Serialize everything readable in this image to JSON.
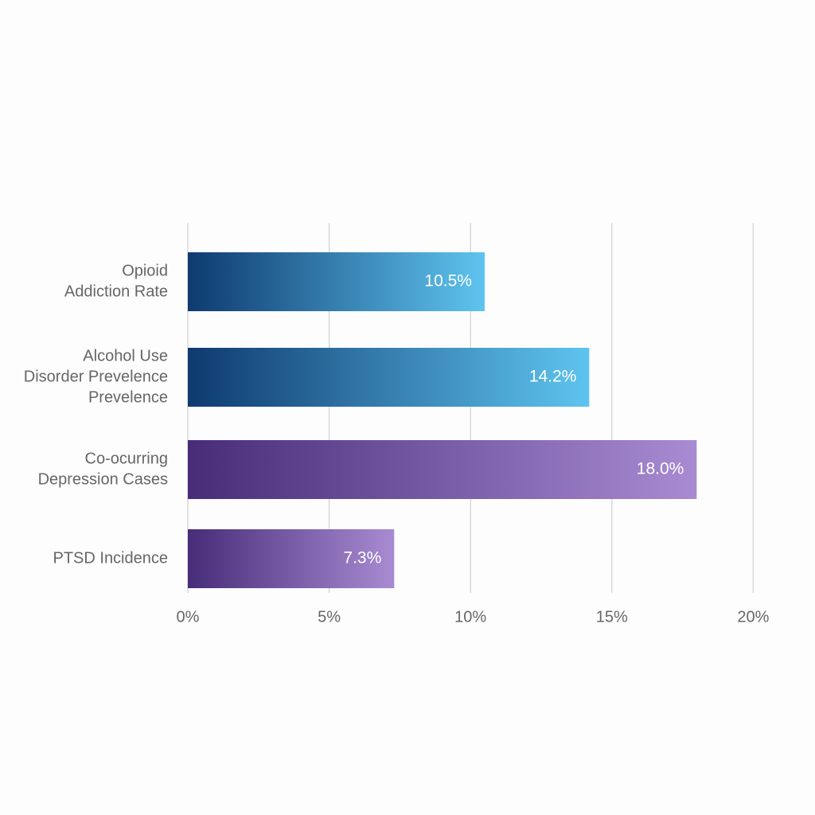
{
  "chart_data": {
    "type": "bar",
    "categories": [
      [
        "Opioid",
        "Addiction Rate"
      ],
      [
        "Alcohol Use",
        "Disorder Prevelence",
        "Prevelence"
      ],
      [
        "Co-ocurring",
        "Depression Cases"
      ],
      [
        "PTSD Incidence"
      ]
    ],
    "values": [
      10.5,
      14.2,
      18.0,
      7.3
    ],
    "value_labels": [
      "10.5%",
      "14.2%",
      "18.0%",
      "7.3%"
    ],
    "colors": [
      [
        "#0e3a6f",
        "#5ec4ef"
      ],
      [
        "#0e3a6f",
        "#5ec4ef"
      ],
      [
        "#472c78",
        "#a88bd2"
      ],
      [
        "#472c78",
        "#a88bd2"
      ]
    ],
    "xlim": [
      0,
      21.2
    ],
    "xticks": [
      {
        "value": 0,
        "label": "0%"
      },
      {
        "value": 5,
        "label": "5%"
      },
      {
        "value": 10,
        "label": "10%"
      },
      {
        "value": 15,
        "label": "15%"
      },
      {
        "value": 20,
        "label": "20%"
      }
    ],
    "grid": true
  }
}
